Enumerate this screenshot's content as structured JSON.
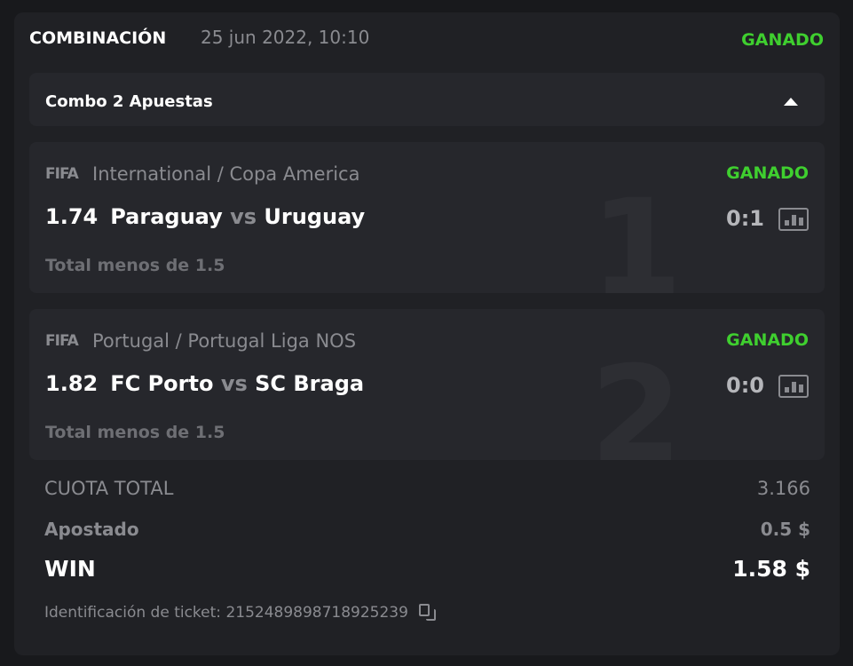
{
  "header": {
    "title": "COMBINACIÓN",
    "date": "25 jun 2022, 10:10",
    "status": "GANADO"
  },
  "combo": {
    "label": "Combo 2 Apuestas"
  },
  "bets": [
    {
      "index": "1",
      "logo": "FIFA",
      "league": "International / Copa America",
      "status": "GANADO",
      "odds": "1.74",
      "home": "Paraguay",
      "vs": "vs",
      "away": "Uruguay",
      "score": "0:1",
      "market": "Total menos de 1.5"
    },
    {
      "index": "2",
      "logo": "FIFA",
      "league": "Portugal / Portugal Liga NOS",
      "status": "GANADO",
      "odds": "1.82",
      "home": "FC Porto",
      "vs": "vs",
      "away": "SC Braga",
      "score": "0:0",
      "market": "Total menos de 1.5"
    }
  ],
  "summary": {
    "total_odds_label": "CUOTA TOTAL",
    "total_odds": "3.166",
    "stake_label": "Apostado",
    "stake": "0.5 $",
    "win_label": "WIN",
    "win": "1.58 $"
  },
  "ticket": {
    "label": "Identificación de ticket:",
    "id": "2152489898718925239"
  },
  "colors": {
    "win": "#3fcf2f",
    "background": "#202125"
  }
}
